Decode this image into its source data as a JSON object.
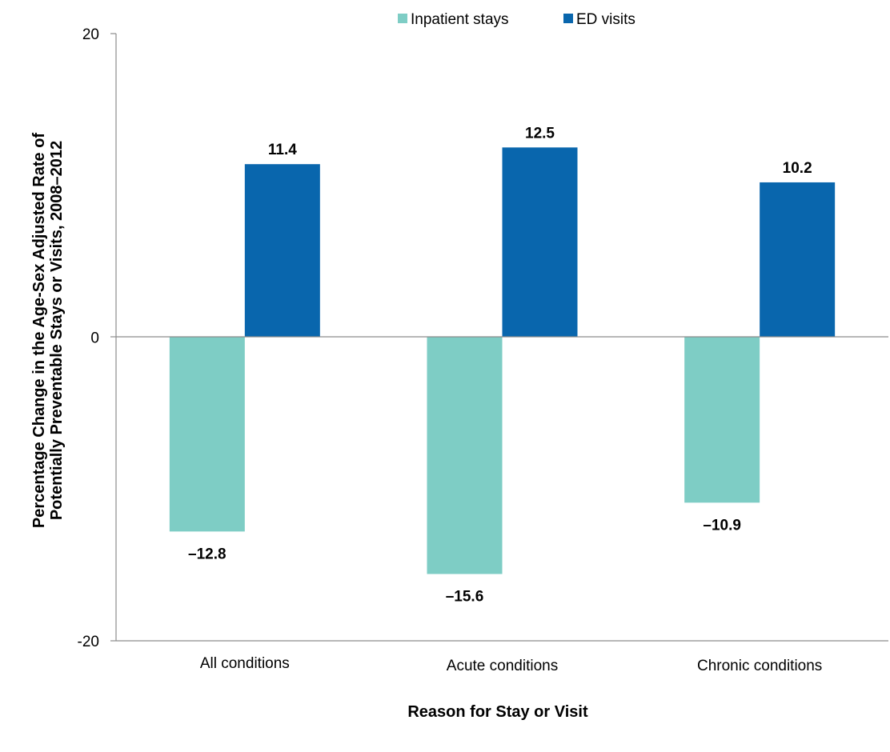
{
  "chart_data": {
    "type": "bar",
    "categories": [
      "All conditions",
      "Acute conditions",
      "Chronic conditions"
    ],
    "series": [
      {
        "name": "Inpatient stays",
        "values": [
          -12.8,
          -15.6,
          -10.9
        ],
        "labels": [
          "–12.8",
          "–15.6",
          "–10.9"
        ],
        "color": "#7ecdc5"
      },
      {
        "name": "ED visits",
        "values": [
          11.4,
          12.5,
          10.2
        ],
        "labels": [
          "11.4",
          "12.5",
          "10.2"
        ],
        "color": "#0966ad"
      }
    ],
    "xlabel": "Reason for Stay or Visit",
    "ylabel_lines": [
      "Percentage Change in the Age-Sex Adjusted Rate of",
      "Potentially Preventable Stays or Visits, 2008–2012"
    ],
    "ylim": [
      -20,
      20
    ],
    "yticks": [
      {
        "value": 20,
        "label": "20"
      },
      {
        "value": 0,
        "label": "0"
      },
      {
        "value": -20,
        "label": "-20"
      }
    ],
    "grid": false,
    "legend_position": "top-center"
  }
}
